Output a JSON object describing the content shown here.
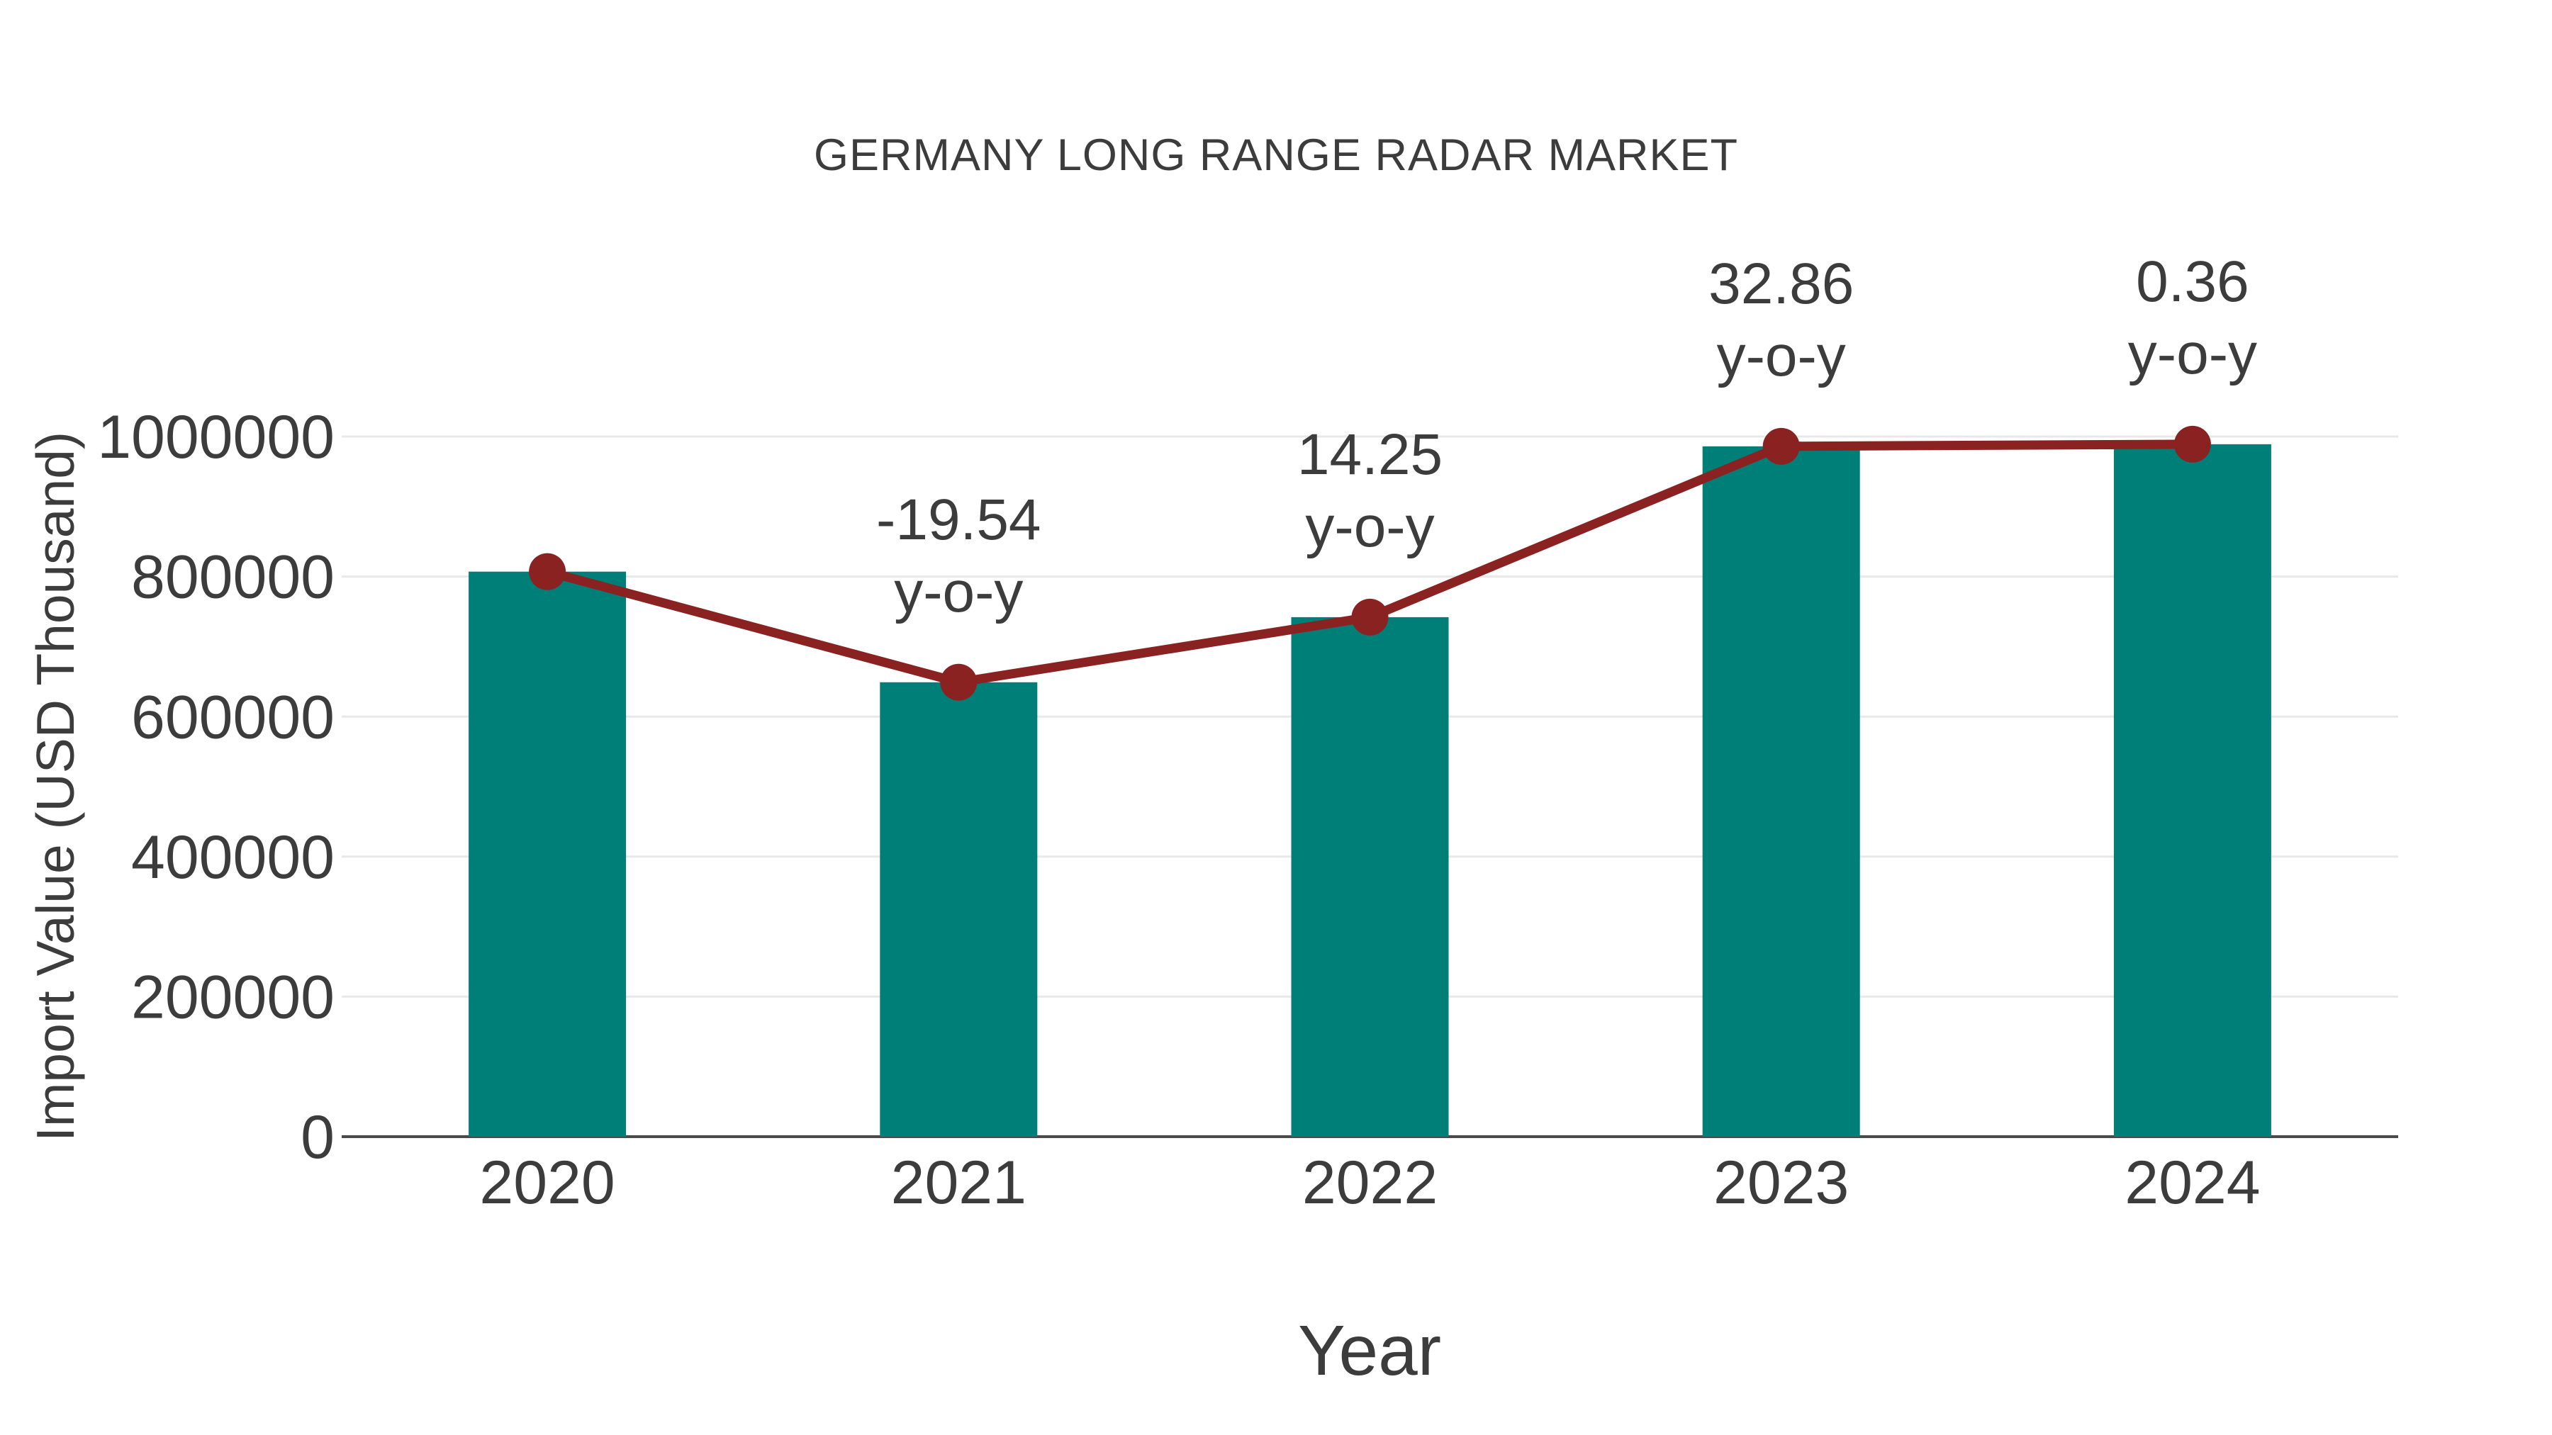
{
  "chart_data": {
    "type": "bar",
    "title": "GERMANY LONG RANGE RADAR MARKET",
    "xlabel": "Year",
    "ylabel": "Import Value (USD Thousand)",
    "categories": [
      "2020",
      "2021",
      "2022",
      "2023",
      "2024"
    ],
    "series": [
      {
        "name": "Import Value",
        "type": "bar",
        "color": "#007F79",
        "values": [
          807000,
          649000,
          742000,
          986000,
          989000
        ]
      },
      {
        "name": "y-o-y change",
        "type": "line",
        "color": "#8B2222",
        "values": [
          807000,
          649000,
          742000,
          986000,
          989000
        ],
        "point_labels": [
          null,
          "-19.54",
          "14.25",
          "32.86",
          "0.36"
        ],
        "point_label_suffix": "y-o-y"
      }
    ],
    "ylim": [
      0,
      1000000
    ],
    "yticks": [
      0,
      200000,
      400000,
      600000,
      800000,
      1000000
    ],
    "grid": "horizontal",
    "legend_position": "none"
  },
  "colors": {
    "bar": "#007F79",
    "line": "#8B2222",
    "marker": "#8B2222",
    "text": "#3C3C3C",
    "gridline": "#E8E8E8",
    "axis_line": "#4A4A4A",
    "background": "#FFFFFF"
  }
}
